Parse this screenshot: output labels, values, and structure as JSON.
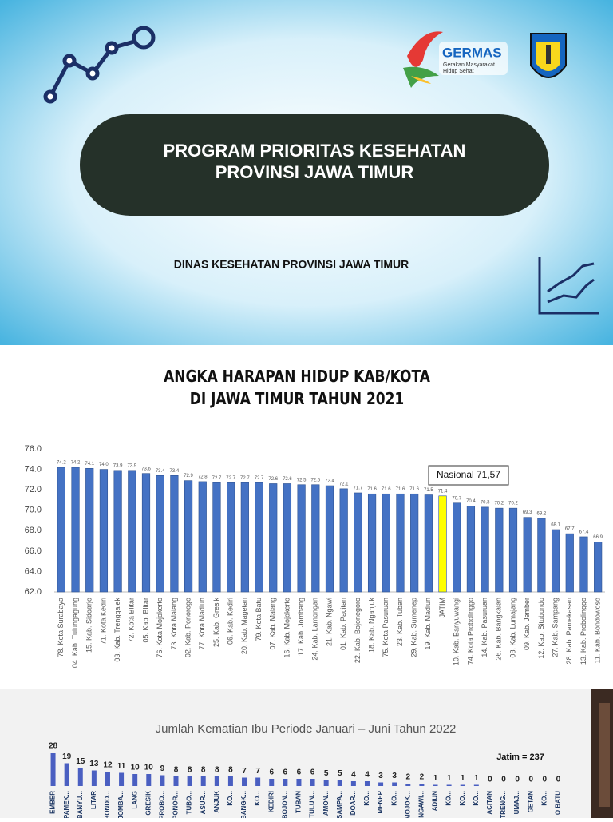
{
  "header": {
    "title_lines": [
      "PROGRAM PRIORITAS KESEHATAN",
      "PROVINSI JAWA TIMUR"
    ],
    "subtitle": "DINAS KESEHATAN PROVINSI JAWA TIMUR",
    "logo_name": "GERMAS",
    "logo_tagline_lines": [
      "Gerakan Masyarakat",
      "Hidup Sehat"
    ]
  },
  "chart_data": [
    {
      "type": "bar",
      "title_lines": [
        "ANGKA HARAPAN HIDUP KAB/KOTA",
        "DI JAWA TIMUR TAHUN 2021"
      ],
      "categories": [
        "78. Kota Surabaya",
        "04. Kab. Tulungagung",
        "15. Kab. Sidoarjo",
        "71. Kota Kediri",
        "03. Kab. Trenggalek",
        "72. Kota Blitar",
        "05. Kab. Blitar",
        "76. Kota Mojokerto",
        "73. Kota Malang",
        "02. Kab. Ponorogo",
        "77. Kota Madiun",
        "25. Kab. Gresik",
        "06. Kab. Kediri",
        "20. Kab. Magetan",
        "79. Kota Batu",
        "07. Kab. Malang",
        "16. Kab. Mojokerto",
        "17. Kab. Jombang",
        "24. Kab. Lamongan",
        "21. Kab. Ngawi",
        "01. Kab. Pacitan",
        "22. Kab. Bojonegoro",
        "18. Kab. Nganjuk",
        "75. Kota Pasuruan",
        "23. Kab. Tuban",
        "29. Kab. Sumenep",
        "19. Kab. Madiun",
        "JATIM",
        "10. Kab. Banyuwangi",
        "74. Kota Probolinggo",
        "14. Kab. Pasuruan",
        "26. Kab. Bangkalan",
        "08. Kab. Lumajang",
        "09. Kab. Jember",
        "12. Kab. Situbondo",
        "27. Kab. Sampang",
        "28. Kab. Pamekasan",
        "13. Kab. Probolinggo",
        "11. Kab. Bondowoso"
      ],
      "values": [
        74.2,
        74.2,
        74.1,
        74.0,
        73.9,
        73.9,
        73.6,
        73.4,
        73.4,
        72.9,
        72.8,
        72.7,
        72.7,
        72.7,
        72.7,
        72.6,
        72.6,
        72.5,
        72.5,
        72.4,
        72.1,
        71.7,
        71.6,
        71.6,
        71.6,
        71.6,
        71.5,
        71.4,
        70.7,
        70.4,
        70.3,
        70.2,
        70.2,
        69.3,
        69.2,
        68.1,
        67.7,
        67.4,
        66.9
      ],
      "value_labels": [
        "74.2",
        "74.2",
        "74.1",
        "74.0",
        "73.9",
        "73.9",
        "73.6",
        "73.4",
        "73.4",
        "72.9",
        "72.8",
        "72.7",
        "72.7",
        "72.7",
        "72.7",
        "72.6",
        "72.6",
        "72.5",
        "72.5",
        "72.4",
        "72.1",
        "71.7",
        "71.6",
        "71.6",
        "71.6",
        "71.6",
        "71.5",
        "71.4",
        "70.7",
        "70.4",
        "70.3",
        "70.2",
        "70.2",
        "69.3",
        "69.2",
        "68.1",
        "67.7",
        "67.4",
        "66.9"
      ],
      "colors": [
        "#4472c4",
        "#4472c4",
        "#4472c4",
        "#4472c4",
        "#4472c4",
        "#4472c4",
        "#4472c4",
        "#4472c4",
        "#4472c4",
        "#4472c4",
        "#4472c4",
        "#4472c4",
        "#4472c4",
        "#4472c4",
        "#4472c4",
        "#4472c4",
        "#4472c4",
        "#4472c4",
        "#4472c4",
        "#4472c4",
        "#4472c4",
        "#4472c4",
        "#4472c4",
        "#4472c4",
        "#4472c4",
        "#4472c4",
        "#4472c4",
        "#ffff00",
        "#4472c4",
        "#4472c4",
        "#4472c4",
        "#4472c4",
        "#4472c4",
        "#4472c4",
        "#4472c4",
        "#4472c4",
        "#4472c4",
        "#4472c4",
        "#4472c4"
      ],
      "ylim": [
        62,
        76
      ],
      "yticks": [
        {
          "value": 62,
          "label": "62.0"
        },
        {
          "value": 64,
          "label": "64.0"
        },
        {
          "value": 66,
          "label": "66.0"
        },
        {
          "value": 68,
          "label": "68.0"
        },
        {
          "value": 70,
          "label": "70.0"
        },
        {
          "value": 72,
          "label": "72.0"
        },
        {
          "value": 74,
          "label": "74.0"
        },
        {
          "value": 76,
          "label": "76.0"
        }
      ],
      "annotation": "Nasional 71,57"
    },
    {
      "type": "bar",
      "title": "Jumlah Kematian Ibu Periode Januari – Juni Tahun 2022",
      "annotation": "Jatim = 237",
      "categories": [
        "EMBER",
        "PAMEK...",
        "BANYU...",
        "LITAR",
        "BONDO...",
        "JOMBA...",
        "LANG",
        "GRESIK",
        "PROBO...",
        "PONOR...",
        "TUBO...",
        "ASUR...",
        "ANJUK",
        "KO...",
        "BANGK...",
        "KO...",
        "KEDIRI",
        "BOJON...",
        "TUBAN",
        "TULUN...",
        "AMON...",
        "SAMPA...",
        "IDOAR...",
        "KO...",
        "MENEP",
        "KO...",
        "MOJOK...",
        "NGAWI...",
        "ADIUN",
        "KO...",
        "KO...",
        "KO...",
        "ACITAN",
        "TRENG...",
        "UMAJ...",
        "GETAN",
        "KO...",
        "O BATU"
      ],
      "values": [
        28,
        19,
        15,
        13,
        12,
        11,
        10,
        10,
        9,
        8,
        8,
        8,
        8,
        8,
        7,
        7,
        6,
        6,
        6,
        6,
        5,
        5,
        4,
        4,
        3,
        3,
        2,
        2,
        1,
        1,
        1,
        1,
        0,
        0,
        0,
        0,
        0,
        0
      ],
      "color": "#4a5fc1"
    }
  ]
}
